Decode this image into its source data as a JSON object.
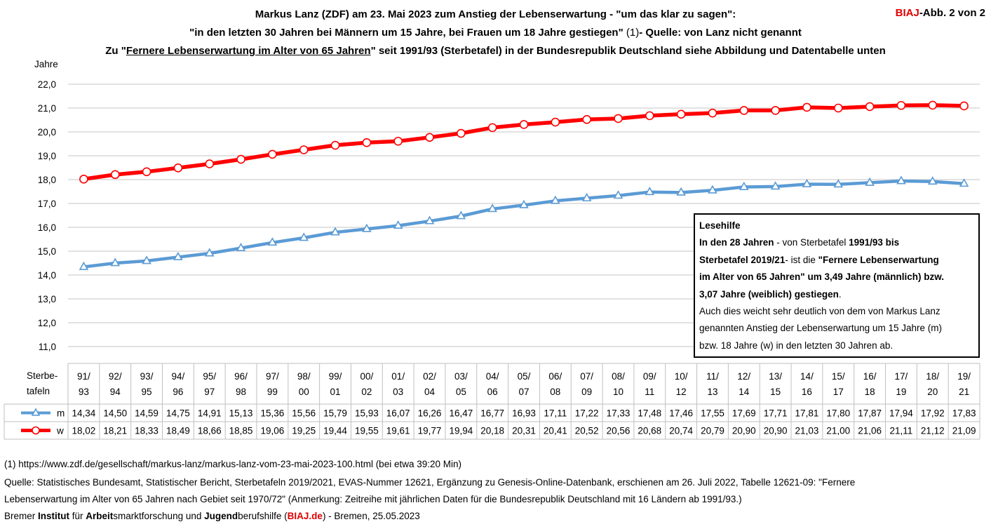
{
  "header": {
    "line1": "Markus Lanz (ZDF) am 23. Mai 2023 zum Anstieg der Lebenserwartung - \"um das klar zu sagen\":",
    "line2_bold": "\"in den letzten 30 Jahren bei Männern um 15 Jahre, bei Frauen um 18 Jahre gestiegen\"",
    "line2_ref": " (1)",
    "line2_tail": "- Quelle: von Lanz nicht genannt",
    "line3_pre": "Zu \"",
    "line3_u": "Fernere Lebenserwartung im Alter von 65 Jahren",
    "line3_post": "\" seit 1991/93 (Sterbetafel) in der Bundesrepublik Deutschland siehe Abbildung und Datentabelle unten",
    "biaj": "BIAJ",
    "biaj_tail": "-Abb. 2 von 2"
  },
  "readbox": {
    "heading": "Lesehilfe",
    "p1_b1": "In den 28 Jahren",
    "p1_t1": " - von Sterbetafel ",
    "p1_b2": "1991/93 bis",
    "p2_b1": "Sterbetafel 2019/21",
    "p2_t1": "-  ist die ",
    "p2_b2": "\"Fernere Lebenserwartung",
    "p3_b1": "im Alter von 65 Jahren\" um 3,49 Jahre (männlich) bzw.",
    "p4_b1": "3,07 Jahre (weiblich) gestiegen",
    "p4_t1": ".",
    "p5": "Auch dies weicht sehr deutlich von dem von Markus Lanz",
    "p6": "genannten Anstieg der Lebenserwartung um 15 Jahre (m)",
    "p7": "bzw. 18 Jahre (w) in den letzten 30 Jahren ab."
  },
  "footer": {
    "l1": "(1) https://www.zdf.de/gesellschaft/markus-lanz/markus-lanz-vom-23-mai-2023-100.html (bei etwa 39:20 Min)",
    "l2": "Quelle: Statistisches Bundesamt,  Statistischer Bericht, Sterbetafeln 2019/2021, EVAS-Nummer 12621, Ergänzung zu Genesis-Online-Datenbank, erschienen am 26. Juli 2022, Tabelle 12621-09: \"Fernere",
    "l3": "Lebenserwartung im Alter von 65 Jahren nach Gebiet seit 1970/72\" (Anmerkung: Zeitreihe mit jährlichen Daten für die Bundesrepublik Deutschland mit 16 Ländern ab 1991/93.)",
    "l4_a": "Bremer ",
    "l4_b": "Institut",
    "l4_c": " für ",
    "l4_d": "Arbeit",
    "l4_e": "smarktforschung und ",
    "l4_f": "Jugend",
    "l4_g": "berufshilfe (",
    "l4_h": "BIAJ.de",
    "l4_i": ") - Bremen, 25.05.2023"
  },
  "chart_data": {
    "type": "line",
    "ylabel": "Jahre",
    "ylim": [
      11.0,
      22.0
    ],
    "yticks": [
      "11,0",
      "12,0",
      "13,0",
      "14,0",
      "15,0",
      "16,0",
      "17,0",
      "18,0",
      "19,0",
      "20,0",
      "21,0",
      "22,0"
    ],
    "grid": true,
    "table_header": [
      "Sterbe-",
      "tafeln"
    ],
    "categories": [
      [
        "91/",
        "93"
      ],
      [
        "92/",
        "94"
      ],
      [
        "93/",
        "95"
      ],
      [
        "94/",
        "96"
      ],
      [
        "95/",
        "97"
      ],
      [
        "96/",
        "98"
      ],
      [
        "97/",
        "99"
      ],
      [
        "98/",
        "00"
      ],
      [
        "99/",
        "01"
      ],
      [
        "00/",
        "02"
      ],
      [
        "01/",
        "03"
      ],
      [
        "02/",
        "04"
      ],
      [
        "03/",
        "05"
      ],
      [
        "04/",
        "06"
      ],
      [
        "05/",
        "07"
      ],
      [
        "06/",
        "08"
      ],
      [
        "07/",
        "09"
      ],
      [
        "08/",
        "10"
      ],
      [
        "09/",
        "11"
      ],
      [
        "10/",
        "12"
      ],
      [
        "11/",
        "13"
      ],
      [
        "12/",
        "14"
      ],
      [
        "13/",
        "15"
      ],
      [
        "14/",
        "16"
      ],
      [
        "15/",
        "17"
      ],
      [
        "16/",
        "18"
      ],
      [
        "17/",
        "19"
      ],
      [
        "18/",
        "20"
      ],
      [
        "19/",
        "21"
      ]
    ],
    "series": [
      {
        "name": "m",
        "color": "#5b9bd5",
        "marker": "triangle",
        "values": [
          14.34,
          14.5,
          14.59,
          14.75,
          14.91,
          15.13,
          15.36,
          15.56,
          15.79,
          15.93,
          16.07,
          16.26,
          16.47,
          16.77,
          16.93,
          17.11,
          17.22,
          17.33,
          17.48,
          17.46,
          17.55,
          17.69,
          17.71,
          17.81,
          17.8,
          17.87,
          17.94,
          17.92,
          17.83
        ],
        "labels": [
          "14,34",
          "14,50",
          "14,59",
          "14,75",
          "14,91",
          "15,13",
          "15,36",
          "15,56",
          "15,79",
          "15,93",
          "16,07",
          "16,26",
          "16,47",
          "16,77",
          "16,93",
          "17,11",
          "17,22",
          "17,33",
          "17,48",
          "17,46",
          "17,55",
          "17,69",
          "17,71",
          "17,81",
          "17,80",
          "17,87",
          "17,94",
          "17,92",
          "17,83"
        ]
      },
      {
        "name": "w",
        "color": "#ff0000",
        "marker": "circle",
        "values": [
          18.02,
          18.21,
          18.33,
          18.49,
          18.66,
          18.85,
          19.06,
          19.25,
          19.44,
          19.55,
          19.61,
          19.77,
          19.94,
          20.18,
          20.31,
          20.41,
          20.52,
          20.56,
          20.68,
          20.74,
          20.79,
          20.9,
          20.9,
          21.03,
          21.0,
          21.06,
          21.11,
          21.12,
          21.09
        ],
        "labels": [
          "18,02",
          "18,21",
          "18,33",
          "18,49",
          "18,66",
          "18,85",
          "19,06",
          "19,25",
          "19,44",
          "19,55",
          "19,61",
          "19,77",
          "19,94",
          "20,18",
          "20,31",
          "20,41",
          "20,52",
          "20,56",
          "20,68",
          "20,74",
          "20,79",
          "20,90",
          "20,90",
          "21,03",
          "21,00",
          "21,06",
          "21,11",
          "21,12",
          "21,09"
        ]
      }
    ]
  }
}
